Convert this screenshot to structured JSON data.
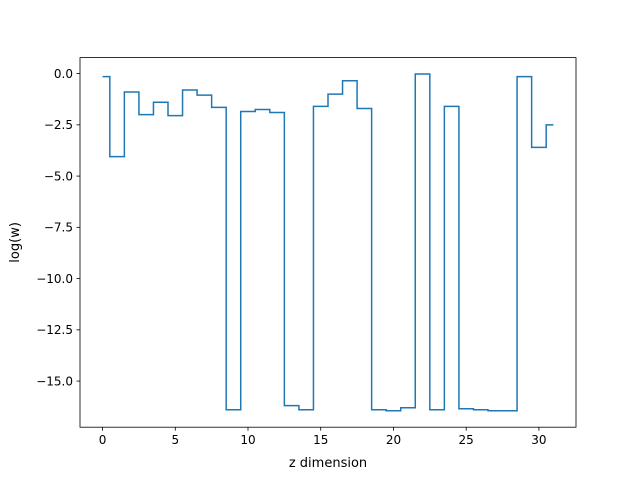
{
  "chart_data": {
    "type": "line",
    "drawstyle": "steps-mid",
    "title": "",
    "xlabel": "z dimension",
    "ylabel": "log(w)",
    "xlim": [
      -1.55,
      32.55
    ],
    "ylim": [
      -17.25,
      0.78
    ],
    "xticks": [
      0,
      5,
      10,
      15,
      20,
      25,
      30
    ],
    "xtick_labels": [
      "0",
      "5",
      "10",
      "15",
      "20",
      "25",
      "30"
    ],
    "yticks": [
      0.0,
      -2.5,
      -5.0,
      -7.5,
      -10.0,
      -12.5,
      -15.0
    ],
    "ytick_labels": [
      "0.0",
      "−2.5",
      "−5.0",
      "−7.5",
      "−10.0",
      "−12.5",
      "−15.0"
    ],
    "grid": false,
    "legend": "none",
    "series": [
      {
        "color": "#1f77b4",
        "x": [
          0,
          1,
          2,
          3,
          4,
          5,
          6,
          7,
          8,
          9,
          10,
          11,
          12,
          13,
          14,
          15,
          16,
          17,
          18,
          19,
          20,
          21,
          22,
          23,
          24,
          25,
          26,
          27,
          28,
          29,
          30,
          31
        ],
        "y": [
          -0.15,
          -4.05,
          -0.9,
          -2.0,
          -1.4,
          -2.05,
          -0.8,
          -1.05,
          -1.65,
          -16.4,
          -1.85,
          -1.75,
          -1.9,
          -16.2,
          -16.4,
          -1.6,
          -1.0,
          -0.35,
          -1.7,
          -16.4,
          -16.45,
          -16.3,
          -0.02,
          -16.4,
          -1.6,
          -16.35,
          -16.4,
          -16.45,
          -16.45,
          -0.15,
          -3.6,
          -2.5
        ]
      }
    ]
  }
}
